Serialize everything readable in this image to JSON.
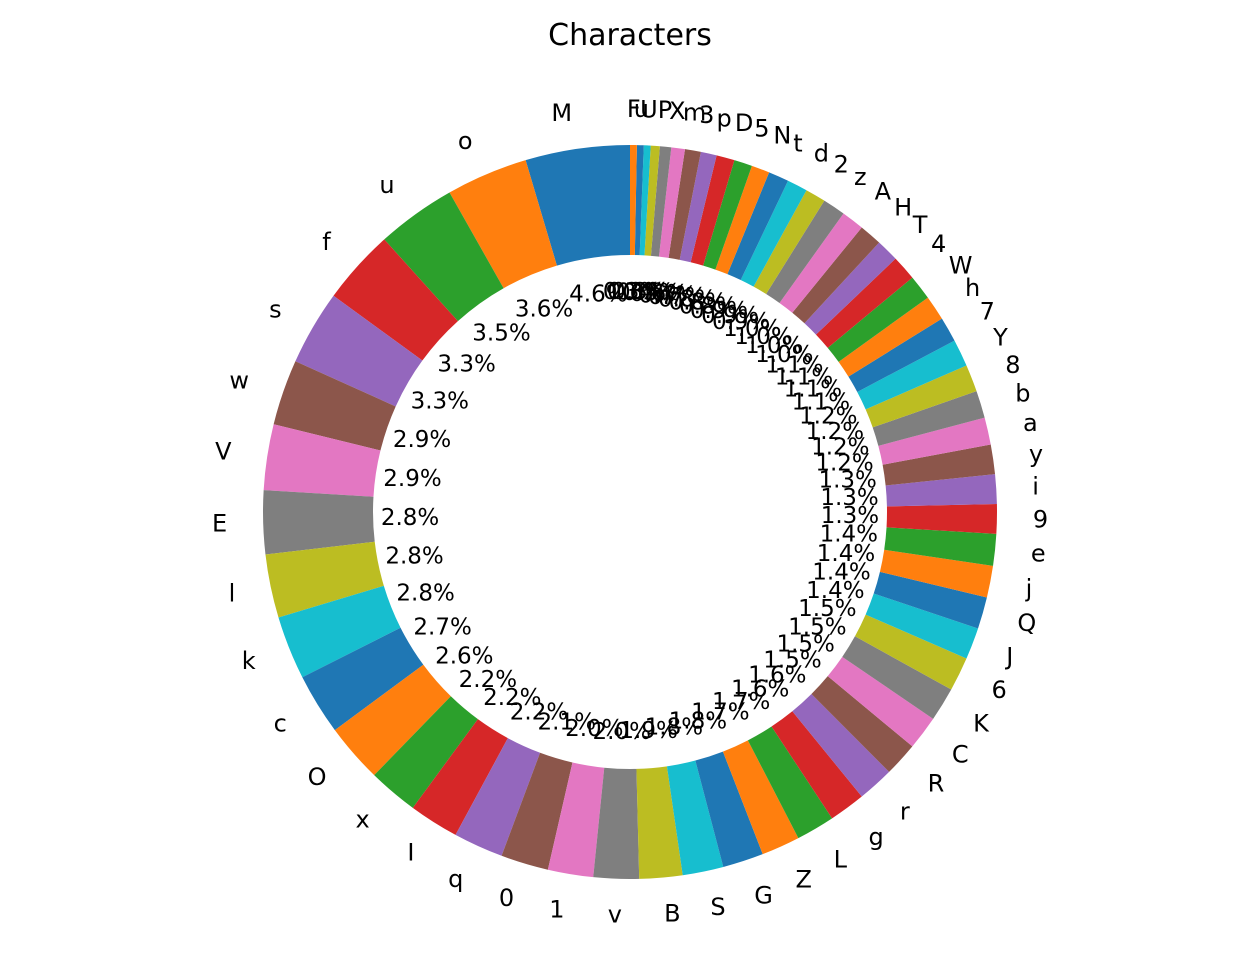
{
  "chart_data": {
    "type": "pie",
    "title": "Characters",
    "donut": true,
    "start_angle_deg": 90,
    "direction": "counterclockwise",
    "categories": [
      "M",
      "o",
      "u",
      "f",
      "s",
      "w",
      "V",
      "E",
      "l",
      "k",
      "c",
      "O",
      "x",
      "I",
      "q",
      "0",
      "1",
      "v",
      "B",
      "S",
      "G",
      "Z",
      "L",
      "g",
      "r",
      "R",
      "C",
      "K",
      "6",
      "J",
      "Q",
      "j",
      "e",
      "9",
      "i",
      "y",
      "a",
      "b",
      "8",
      "Y",
      "7",
      "h",
      "W",
      "4",
      "T",
      "H",
      "A",
      "z",
      "2",
      "d",
      "t",
      "N",
      "5",
      "D",
      "p",
      "3",
      "m",
      "X",
      "P",
      "U",
      "u",
      "F"
    ],
    "values": [
      4.6,
      3.6,
      3.5,
      3.3,
      3.3,
      2.9,
      2.9,
      2.8,
      2.8,
      2.8,
      2.7,
      2.6,
      2.2,
      2.2,
      2.2,
      2.1,
      2.0,
      2.0,
      1.9,
      1.8,
      1.8,
      1.7,
      1.7,
      1.6,
      1.6,
      1.5,
      1.5,
      1.5,
      1.5,
      1.4,
      1.4,
      1.4,
      1.4,
      1.3,
      1.3,
      1.3,
      1.2,
      1.2,
      1.2,
      1.2,
      1.1,
      1.1,
      1.1,
      1.1,
      1.0,
      1.0,
      1.0,
      1.0,
      0.9,
      0.9,
      0.9,
      0.8,
      0.8,
      0.8,
      0.7,
      0.7,
      0.6,
      0.5,
      0.4,
      0.3,
      0.3,
      0.3
    ],
    "value_format": "{v}%",
    "colors": [
      "#1f77b4",
      "#ff7f0e",
      "#2ca02c",
      "#d62728",
      "#9467bd",
      "#8c564b",
      "#e377c2",
      "#7f7f7f",
      "#bcbd22",
      "#17becf"
    ]
  }
}
